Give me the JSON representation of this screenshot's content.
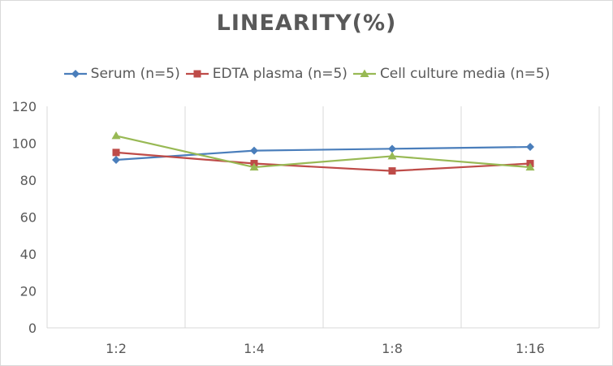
{
  "chart_data": {
    "type": "line",
    "title": "LINEARITY(%)",
    "categories": [
      "1:2",
      "1:4",
      "1:8",
      "1:16"
    ],
    "ylim": [
      0,
      120
    ],
    "yticks": [
      0,
      20,
      40,
      60,
      80,
      100,
      120
    ],
    "grid": "vertical",
    "legend": "top",
    "series": [
      {
        "name": "Serum (n=5)",
        "values": [
          91,
          96,
          97,
          98
        ],
        "color": "#4a7ebb",
        "marker": "diamond"
      },
      {
        "name": "EDTA plasma (n=5)",
        "values": [
          95,
          89,
          85,
          89
        ],
        "color": "#be4b48",
        "marker": "square"
      },
      {
        "name": "Cell culture media (n=5)",
        "values": [
          104,
          87,
          93,
          87
        ],
        "color": "#98b954",
        "marker": "triangle"
      }
    ]
  }
}
